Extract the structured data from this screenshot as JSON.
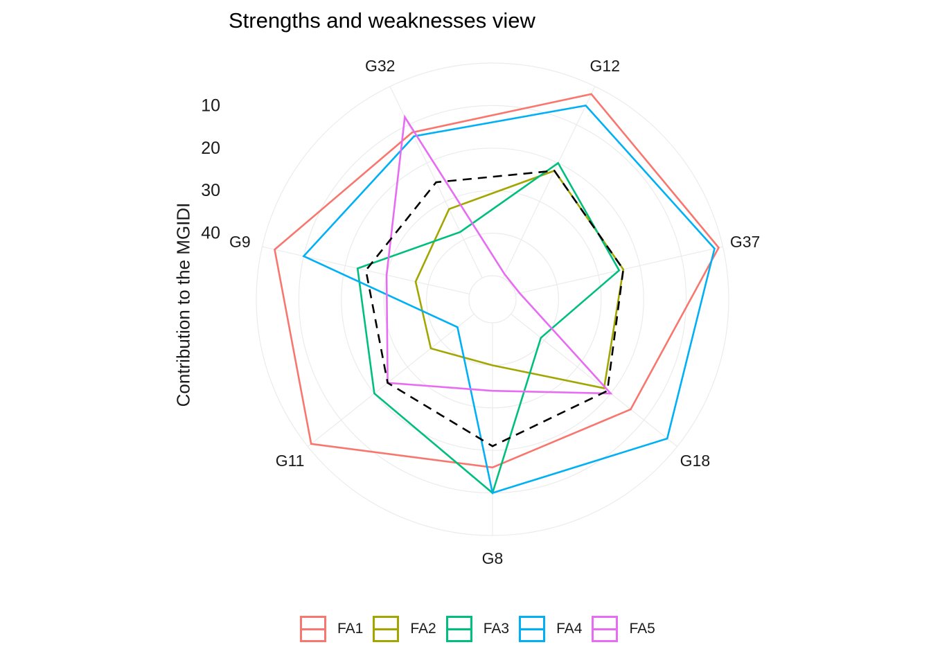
{
  "chart_data": {
    "type": "radar",
    "title": "Strengths and weaknesses view",
    "ylabel": "Contribution to the MGIDI",
    "radial_ticks": [
      "10",
      "20",
      "30",
      "40"
    ],
    "categories": [
      "G12",
      "G37",
      "G18",
      "G8",
      "G11",
      "G9",
      "G32"
    ],
    "series": [
      {
        "name": "FA1",
        "color": "#F8766D",
        "dashed": false,
        "values": [
          2,
          1,
          14,
          16,
          1,
          3,
          12
        ]
      },
      {
        "name": "FA2",
        "color": "#A3A500",
        "dashed": false,
        "values": [
          22,
          24,
          22,
          40,
          37,
          37,
          32
        ]
      },
      {
        "name": "FA3",
        "color": "#00BF7D",
        "dashed": false,
        "values": [
          20,
          25,
          41,
          10,
          20,
          23,
          38
        ]
      },
      {
        "name": "FA4",
        "color": "#00B0F6",
        "dashed": false,
        "values": [
          5,
          2,
          3,
          10,
          45,
          10,
          13
        ]
      },
      {
        "name": "FA5",
        "color": "#E76BF3",
        "dashed": false,
        "values": [
          49,
          49,
          20,
          34,
          24,
          30,
          8
        ]
      },
      {
        "name": "",
        "color": "#000000",
        "dashed": true,
        "values": [
          22,
          24,
          21,
          21,
          24,
          25,
          25
        ]
      }
    ],
    "grid": true,
    "legend_position": "bottom"
  }
}
